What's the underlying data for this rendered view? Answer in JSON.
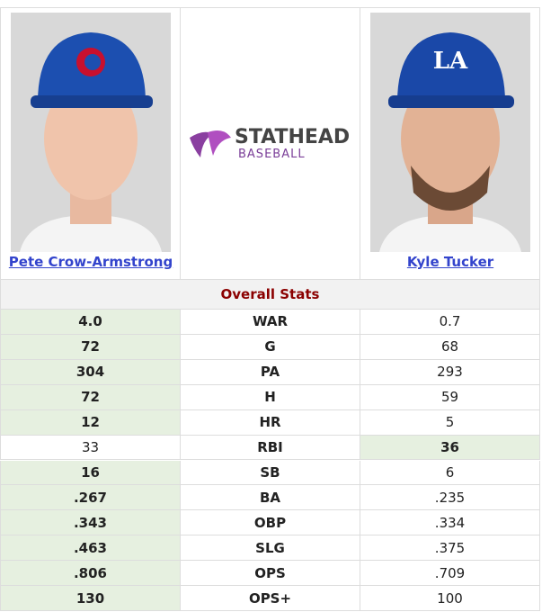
{
  "logo": {
    "title": "STATHEAD",
    "subtitle": "BASEBALL"
  },
  "players": [
    {
      "name": "Pete Crow-Armstrong"
    },
    {
      "name": "Kyle Tucker"
    }
  ],
  "section": "Overall Stats",
  "table": {
    "rows": [
      {
        "stat": "WAR",
        "left": "4.0",
        "right": "0.7",
        "leader": "left"
      },
      {
        "stat": "G",
        "left": "72",
        "right": "68",
        "leader": "left"
      },
      {
        "stat": "PA",
        "left": "304",
        "right": "293",
        "leader": "left"
      },
      {
        "stat": "H",
        "left": "72",
        "right": "59",
        "leader": "left"
      },
      {
        "stat": "HR",
        "left": "12",
        "right": "5",
        "leader": "left"
      },
      {
        "stat": "RBI",
        "left": "33",
        "right": "36",
        "leader": "right"
      },
      {
        "stat": "SB",
        "left": "16",
        "right": "6",
        "leader": "left"
      },
      {
        "stat": "BA",
        "left": ".267",
        "right": ".235",
        "leader": "left"
      },
      {
        "stat": "OBP",
        "left": ".343",
        "right": ".334",
        "leader": "left"
      },
      {
        "stat": "SLG",
        "left": ".463",
        "right": ".375",
        "leader": "left"
      },
      {
        "stat": "OPS",
        "left": ".806",
        "right": ".709",
        "leader": "left"
      },
      {
        "stat": "OPS+",
        "left": "130",
        "right": "100",
        "leader": "left"
      }
    ]
  }
}
